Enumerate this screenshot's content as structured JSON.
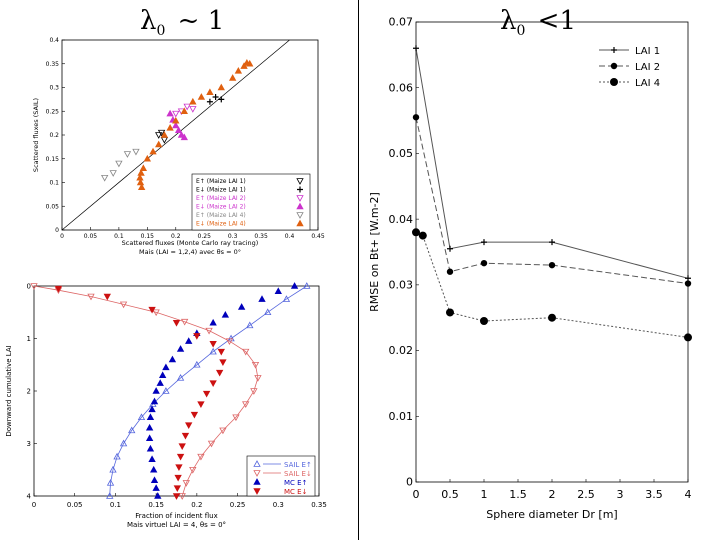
{
  "panels": {
    "left_title": "λ0 ~ 1",
    "right_title": "λ0 <1"
  },
  "chart_data": [
    {
      "id": "tl",
      "type": "scatter",
      "title": "",
      "caption": "Mais (LAI = 1,2,4) avec θs = 0°",
      "xlabel": "Scattered fluxes (Monte Carlo ray tracing)",
      "ylabel": "Scattered fluxes (SAIL)",
      "xlim": [
        0,
        0.45
      ],
      "ylim": [
        0,
        0.4
      ],
      "xticks": [
        "0",
        "0.05",
        "0.1",
        "0.15",
        "0.2",
        "0.25",
        "0.3",
        "0.35",
        "0.4",
        "0.45"
      ],
      "yticks": [
        "0",
        "0.05",
        "0.1",
        "0.15",
        "0.2",
        "0.25",
        "0.3",
        "0.35",
        "0.4"
      ],
      "legend": [
        {
          "label": "E↑ (Maize LAI 1)",
          "color": "#000000",
          "marker": "tri-down-open"
        },
        {
          "label": "E↓ (Maize LAI 1)",
          "color": "#000000",
          "marker": "plus"
        },
        {
          "label": "E↑ (Maize LAI 2)",
          "color": "#cc33cc",
          "marker": "tri-down-open"
        },
        {
          "label": "E↓ (Maize LAI 2)",
          "color": "#cc33cc",
          "marker": "tri-up"
        },
        {
          "label": "E↑ (Maize LAI 4)",
          "color": "#888888",
          "marker": "tri-down-open"
        },
        {
          "label": "E↓ (Maize LAI 4)",
          "color": "#e06010",
          "marker": "tri-up"
        }
      ],
      "series": [
        {
          "name": "LAI1 up",
          "color": "#000000",
          "marker": "tri-down-open",
          "points": [
            [
              0.17,
              0.2
            ],
            [
              0.175,
              0.205
            ],
            [
              0.18,
              0.19
            ]
          ]
        },
        {
          "name": "LAI1 down",
          "color": "#000000",
          "marker": "plus",
          "points": [
            [
              0.26,
              0.27
            ],
            [
              0.27,
              0.28
            ],
            [
              0.28,
              0.275
            ]
          ]
        },
        {
          "name": "LAI2 up",
          "color": "#cc33cc",
          "marker": "tri-down-open",
          "points": [
            [
              0.2,
              0.245
            ],
            [
              0.21,
              0.25
            ],
            [
              0.22,
              0.26
            ],
            [
              0.23,
              0.255
            ]
          ]
        },
        {
          "name": "LAI2 down",
          "color": "#cc33cc",
          "marker": "tri-up",
          "points": [
            [
              0.19,
              0.245
            ],
            [
              0.195,
              0.232
            ],
            [
              0.2,
              0.22
            ],
            [
              0.205,
              0.21
            ],
            [
              0.21,
              0.2
            ],
            [
              0.215,
              0.195
            ]
          ]
        },
        {
          "name": "LAI4 up",
          "color": "#888888",
          "marker": "tri-down-open",
          "points": [
            [
              0.075,
              0.11
            ],
            [
              0.09,
              0.12
            ],
            [
              0.1,
              0.14
            ],
            [
              0.115,
              0.16
            ],
            [
              0.13,
              0.165
            ]
          ]
        },
        {
          "name": "LAI4 down",
          "color": "#e06010",
          "marker": "tri-up",
          "points": [
            [
              0.14,
              0.09
            ],
            [
              0.138,
              0.1
            ],
            [
              0.137,
              0.11
            ],
            [
              0.139,
              0.12
            ],
            [
              0.143,
              0.13
            ],
            [
              0.15,
              0.15
            ],
            [
              0.16,
              0.165
            ],
            [
              0.17,
              0.18
            ],
            [
              0.18,
              0.2
            ],
            [
              0.19,
              0.215
            ],
            [
              0.2,
              0.23
            ],
            [
              0.215,
              0.25
            ],
            [
              0.23,
              0.27
            ],
            [
              0.245,
              0.28
            ],
            [
              0.26,
              0.29
            ],
            [
              0.28,
              0.3
            ],
            [
              0.3,
              0.32
            ],
            [
              0.31,
              0.335
            ],
            [
              0.32,
              0.345
            ],
            [
              0.325,
              0.352
            ],
            [
              0.33,
              0.35
            ]
          ]
        }
      ],
      "reference_line": [
        [
          0,
          0
        ],
        [
          0.45,
          0.45
        ]
      ]
    },
    {
      "id": "bl",
      "type": "line",
      "title": "",
      "caption": "Mais virtuel LAI = 4, θs = 0°",
      "xlabel": "Fraction of incident flux",
      "ylabel": "Downward cumulative LAI",
      "xlim": [
        0,
        0.35
      ],
      "ylim": [
        0,
        4
      ],
      "xticks": [
        "0",
        "0.05",
        "0.1",
        "0.15",
        "0.2",
        "0.25",
        "0.3",
        "0.35"
      ],
      "yticks": [
        "0",
        "1",
        "2",
        "3",
        "4"
      ],
      "legend": [
        {
          "label": "SAIL E↑",
          "color": "#5566dd",
          "marker": "tri-up-open"
        },
        {
          "label": "SAIL E↓",
          "color": "#dd6666",
          "marker": "tri-down-open"
        },
        {
          "label": "MC E↑",
          "color": "#0000bb",
          "marker": "tri-up"
        },
        {
          "label": "MC E↓",
          "color": "#cc1111",
          "marker": "tri-down"
        }
      ],
      "series": [
        {
          "name": "SAIL E↑",
          "color": "#5566dd",
          "marker": "tri-up-open",
          "points": [
            [
              0.335,
              0
            ],
            [
              0.31,
              0.25
            ],
            [
              0.287,
              0.5
            ],
            [
              0.265,
              0.75
            ],
            [
              0.242,
              1.0
            ],
            [
              0.22,
              1.25
            ],
            [
              0.2,
              1.5
            ],
            [
              0.18,
              1.75
            ],
            [
              0.162,
              2.0
            ],
            [
              0.146,
              2.25
            ],
            [
              0.132,
              2.5
            ],
            [
              0.12,
              2.75
            ],
            [
              0.11,
              3.0
            ],
            [
              0.102,
              3.25
            ],
            [
              0.097,
              3.5
            ],
            [
              0.094,
              3.75
            ],
            [
              0.093,
              4.0
            ]
          ]
        },
        {
          "name": "SAIL E↓",
          "color": "#dd6666",
          "marker": "tri-down-open",
          "points": [
            [
              0,
              0
            ],
            [
              0.03,
              0.08
            ],
            [
              0.07,
              0.2
            ],
            [
              0.11,
              0.35
            ],
            [
              0.15,
              0.5
            ],
            [
              0.185,
              0.68
            ],
            [
              0.215,
              0.85
            ],
            [
              0.24,
              1.05
            ],
            [
              0.26,
              1.25
            ],
            [
              0.272,
              1.5
            ],
            [
              0.275,
              1.75
            ],
            [
              0.27,
              2.0
            ],
            [
              0.26,
              2.25
            ],
            [
              0.248,
              2.5
            ],
            [
              0.232,
              2.75
            ],
            [
              0.218,
              3.0
            ],
            [
              0.205,
              3.25
            ],
            [
              0.195,
              3.5
            ],
            [
              0.187,
              3.75
            ],
            [
              0.182,
              4.0
            ]
          ]
        },
        {
          "name": "MC E↑",
          "color": "#0000bb",
          "marker": "tri-up",
          "points": [
            [
              0.32,
              0
            ],
            [
              0.3,
              0.1
            ],
            [
              0.28,
              0.25
            ],
            [
              0.255,
              0.4
            ],
            [
              0.235,
              0.55
            ],
            [
              0.22,
              0.7
            ],
            [
              0.2,
              0.9
            ],
            [
              0.19,
              1.05
            ],
            [
              0.18,
              1.2
            ],
            [
              0.17,
              1.4
            ],
            [
              0.162,
              1.55
            ],
            [
              0.158,
              1.7
            ],
            [
              0.155,
              1.85
            ],
            [
              0.15,
              2.0
            ],
            [
              0.148,
              2.2
            ],
            [
              0.145,
              2.35
            ],
            [
              0.143,
              2.5
            ],
            [
              0.142,
              2.7
            ],
            [
              0.142,
              2.9
            ],
            [
              0.143,
              3.1
            ],
            [
              0.145,
              3.3
            ],
            [
              0.147,
              3.5
            ],
            [
              0.148,
              3.7
            ],
            [
              0.15,
              3.85
            ],
            [
              0.152,
              4.0
            ]
          ]
        },
        {
          "name": "MC E↓",
          "color": "#cc1111",
          "marker": "tri-down",
          "points": [
            [
              0.03,
              0.05
            ],
            [
              0.09,
              0.2
            ],
            [
              0.145,
              0.45
            ],
            [
              0.175,
              0.7
            ],
            [
              0.2,
              0.95
            ],
            [
              0.22,
              1.1
            ],
            [
              0.23,
              1.25
            ],
            [
              0.232,
              1.45
            ],
            [
              0.228,
              1.65
            ],
            [
              0.22,
              1.85
            ],
            [
              0.212,
              2.05
            ],
            [
              0.205,
              2.25
            ],
            [
              0.197,
              2.45
            ],
            [
              0.19,
              2.65
            ],
            [
              0.186,
              2.85
            ],
            [
              0.182,
              3.05
            ],
            [
              0.18,
              3.25
            ],
            [
              0.178,
              3.45
            ],
            [
              0.177,
              3.65
            ],
            [
              0.176,
              3.85
            ],
            [
              0.175,
              4.0
            ]
          ]
        }
      ]
    },
    {
      "id": "r",
      "type": "line",
      "title": "",
      "xlabel": "Sphere diameter Dr [m]",
      "ylabel": "RMSE on Bt+ [W.m-2]",
      "xlim": [
        0,
        4
      ],
      "ylim": [
        0,
        0.07
      ],
      "xticks": [
        "0",
        "0.5",
        "1",
        "1.5",
        "2",
        "2.5",
        "3",
        "3.5",
        "4"
      ],
      "yticks": [
        "0",
        "0.01",
        "0.02",
        "0.03",
        "0.04",
        "0.05",
        "0.06",
        "0.07"
      ],
      "legend": [
        {
          "label": "LAI 1",
          "style": "solid",
          "marker": "plus"
        },
        {
          "label": "LAI 2",
          "style": "dashed",
          "marker": "dot-medium"
        },
        {
          "label": "LAI 4",
          "style": "dotted",
          "marker": "dot-large"
        }
      ],
      "series": [
        {
          "name": "LAI 1",
          "style": "solid",
          "marker": "plus",
          "x": [
            0,
            0.5,
            1,
            2,
            4
          ],
          "y": [
            0.066,
            0.0355,
            0.0365,
            0.0365,
            0.031
          ]
        },
        {
          "name": "LAI 2",
          "style": "dashed",
          "marker": "dot-medium",
          "x": [
            0,
            0.5,
            1,
            2,
            4
          ],
          "y": [
            0.0555,
            0.032,
            0.0333,
            0.033,
            0.0302
          ]
        },
        {
          "name": "LAI 4",
          "style": "dotted",
          "marker": "dot-large",
          "x": [
            0,
            0.1,
            0.5,
            1,
            2,
            4
          ],
          "y": [
            0.038,
            0.0375,
            0.0258,
            0.0245,
            0.025,
            0.022
          ]
        }
      ]
    }
  ]
}
